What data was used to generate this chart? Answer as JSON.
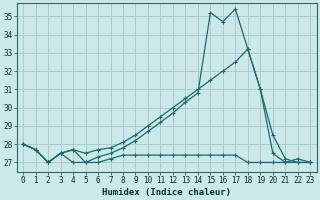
{
  "xlabel": "Humidex (Indice chaleur)",
  "bg_color": "#cce8e8",
  "grid_color": "#aacccc",
  "line_color": "#1a6b6b",
  "xlim": [
    -0.5,
    23.5
  ],
  "ylim": [
    26.5,
    35.7
  ],
  "yticks": [
    27,
    28,
    29,
    30,
    31,
    32,
    33,
    34,
    35
  ],
  "xticks": [
    0,
    1,
    2,
    3,
    4,
    5,
    6,
    7,
    8,
    9,
    10,
    11,
    12,
    13,
    14,
    15,
    16,
    17,
    18,
    19,
    20,
    21,
    22,
    23
  ],
  "line1_x": [
    0,
    1,
    2,
    3,
    4,
    5,
    6,
    7,
    8,
    9,
    10,
    11,
    12,
    13,
    14,
    15,
    16,
    17,
    18,
    19,
    20,
    21,
    22,
    23
  ],
  "line1_y": [
    28.0,
    27.7,
    27.0,
    27.5,
    27.7,
    27.0,
    27.0,
    27.2,
    27.4,
    27.4,
    27.4,
    27.4,
    27.4,
    27.4,
    27.4,
    27.4,
    27.4,
    27.4,
    27.0,
    27.0,
    27.0,
    27.0,
    27.0,
    27.0
  ],
  "line2_x": [
    0,
    1,
    2,
    3,
    4,
    5,
    6,
    7,
    8,
    9,
    10,
    11,
    12,
    13,
    14,
    15,
    16,
    17,
    18,
    19,
    20,
    21,
    22,
    23
  ],
  "line2_y": [
    28.0,
    27.7,
    27.0,
    27.5,
    27.7,
    27.5,
    27.7,
    27.8,
    28.1,
    28.5,
    29.0,
    29.5,
    30.0,
    30.5,
    31.0,
    31.5,
    32.0,
    32.5,
    33.2,
    31.0,
    27.5,
    27.0,
    27.2,
    27.0
  ],
  "line3_x": [
    0,
    1,
    2,
    3,
    4,
    5,
    6,
    7,
    8,
    9,
    10,
    11,
    12,
    13,
    14,
    15,
    16,
    17,
    18,
    19,
    20,
    21,
    22,
    23
  ],
  "line3_y": [
    28.0,
    27.7,
    27.0,
    27.5,
    27.0,
    27.0,
    27.3,
    27.5,
    27.8,
    28.2,
    28.7,
    29.2,
    29.7,
    30.3,
    30.8,
    35.2,
    34.7,
    35.4,
    33.2,
    31.0,
    28.5,
    27.2,
    27.0,
    27.0
  ]
}
